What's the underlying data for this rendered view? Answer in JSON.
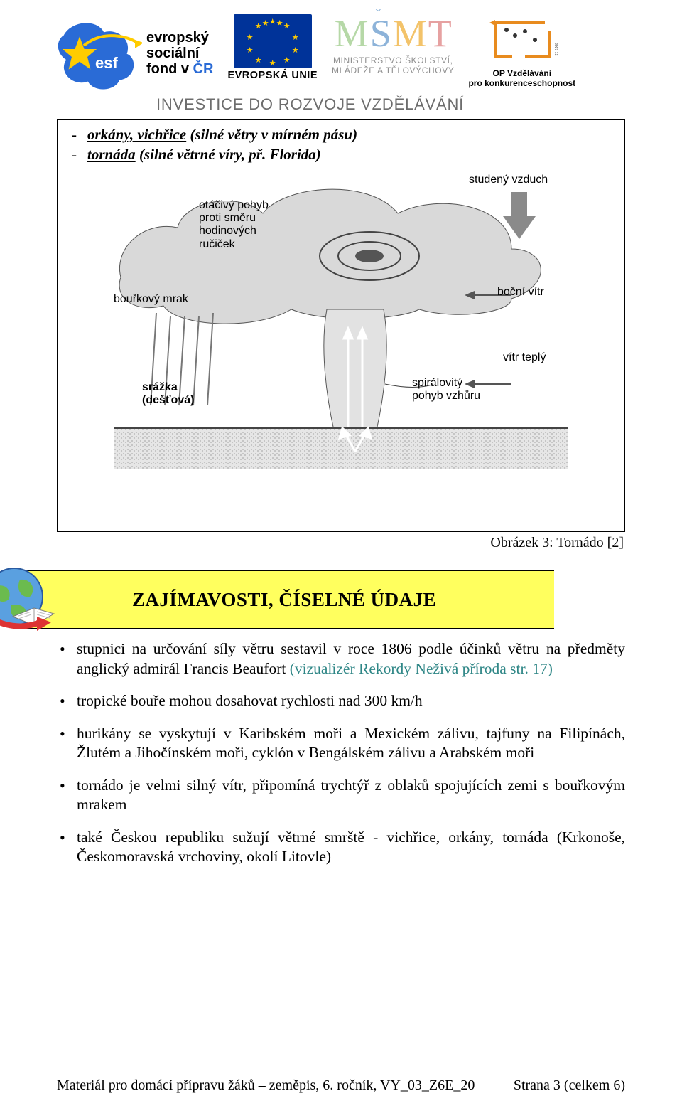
{
  "header": {
    "esf_text_lines": [
      "evropský",
      "sociální",
      "fond v ČR"
    ],
    "eu_label": "EVROPSKÁ UNIE",
    "msmt_line1": "MINISTERSTVO ŠKOLSTVÍ,",
    "msmt_line2": "MLÁDEŽE A TĚLOVÝCHOVY",
    "op_line1": "OP Vzdělávání",
    "op_line2": "pro konkurenceschopnost",
    "op_side": "2007-13",
    "invest_line": "INVESTICE DO ROZVOJE VZDĚLÁVÁNÍ"
  },
  "content_box": {
    "bullets": {
      "b1_u": "orkány, vichřice",
      "b1_rest": " (silné větry v mírném pásu)",
      "b2_u": "tornáda",
      "b2_rest": " (silné větrné víry, př. Florida)"
    },
    "diagram_labels": {
      "otacivy": "otáčivý pohyb\nproti směru\nhodinových\nručiček",
      "bourkovy": "bouřkový mrak",
      "srazka": "srážka\n(dešťová)",
      "studeny": "studený vzduch",
      "bocni": "boční vítr",
      "tepl": "vítr teplý",
      "spiral": "spirálovitý\npohyb vzhůru"
    },
    "caption": "Obrázek 3: Tornádo [2]"
  },
  "banner": {
    "title": "ZAJÍMAVOSTI, ČÍSELNÉ ÚDAJE"
  },
  "facts": {
    "f1_pre": "stupnici na určování síly větru sestavil v roce 1806 podle účinků větru na předměty anglický admirál Francis Beaufort ",
    "f1_teal": "(vizualizér Rekordy Neživá příroda str. 17)",
    "f2": "tropické bouře mohou dosahovat rychlosti nad 300 km/h",
    "f3": "hurikány se vyskytují v Karibském moři a Mexickém zálivu, tajfuny na Filipínách, Žlutém a Jihočínském moři, cyklón v Bengálském zálivu a Arabském moři",
    "f4": "tornádo je velmi silný vítr, připomíná trychtýř z oblaků spojujících zemi s bouřkovým mrakem",
    "f5": "také Českou republiku sužují větrné smrště - vichřice, orkány, tornáda (Krkonoše, Českomoravská vrchoviny, okolí Litovle)"
  },
  "footer": {
    "left": "Materiál pro domácí přípravu žáků – zeměpis, 6. ročník, VY_03_Z6E_20",
    "right": "Strana 3 (celkem 6)"
  },
  "colors": {
    "yellow_banner": "#ffff5e",
    "teal_text": "#2e8686",
    "eu_blue": "#003399",
    "eu_gold": "#ffcc00",
    "op_orange": "#e88b1e",
    "esf_blue": "#2a6bd6",
    "gray_text": "#6d6d6d"
  },
  "typography": {
    "body_font": "Times New Roman",
    "header_font": "Arial",
    "body_fontsize_pt": 16,
    "banner_title_pt": 20,
    "invest_line_pt": 16
  }
}
